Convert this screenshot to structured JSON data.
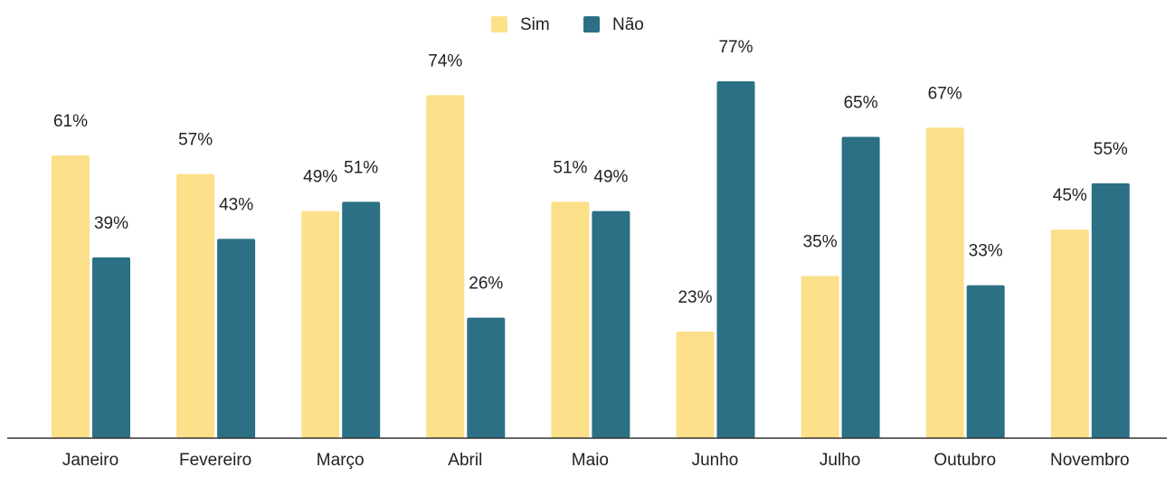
{
  "chart_data": {
    "type": "bar",
    "categories": [
      "Janeiro",
      "Fevereiro",
      "Março",
      "Abril",
      "Maio",
      "Junho",
      "Julho",
      "Outubro",
      "Novembro"
    ],
    "series": [
      {
        "name": "Sim",
        "color": "#fce08a",
        "values": [
          61,
          57,
          49,
          74,
          51,
          23,
          35,
          67,
          45
        ],
        "value_labels": [
          "61%",
          "57%",
          "49%",
          "74%",
          "51%",
          "23%",
          "35%",
          "67%",
          "45%"
        ]
      },
      {
        "name": "Não",
        "color": "#2b7085",
        "values": [
          39,
          43,
          51,
          26,
          49,
          77,
          65,
          33,
          55
        ],
        "value_labels": [
          "39%",
          "43%",
          "51%",
          "26%",
          "49%",
          "77%",
          "65%",
          "33%",
          "55%"
        ]
      }
    ],
    "legend": "top"
  }
}
